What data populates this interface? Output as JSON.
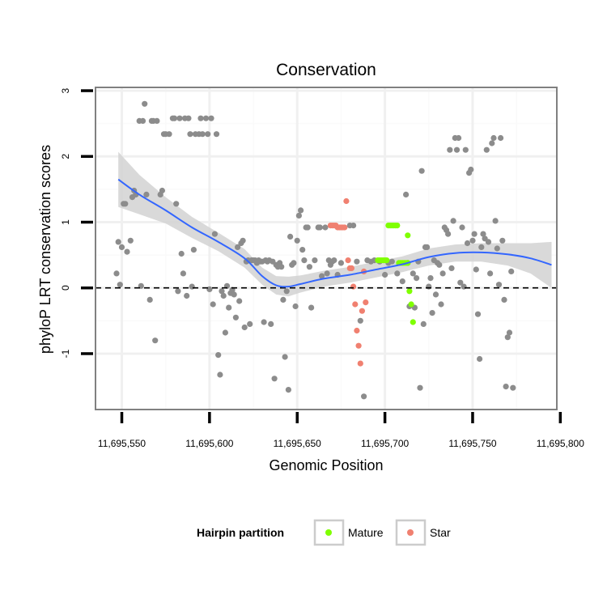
{
  "chart_data": {
    "type": "scatter",
    "title": "Conservation",
    "xlabel": "Genomic Position",
    "ylabel": "phyloP LRT conservation scores",
    "xlim": [
      11695535,
      11695798
    ],
    "ylim": [
      -1.85,
      3.05
    ],
    "x_ticks": [
      11695550,
      11695600,
      11695650,
      11695700,
      11695750,
      11695800
    ],
    "x_tick_labels": [
      "11,695,550",
      "11,695,600",
      "11,695,650",
      "11,695,700",
      "11,695,750",
      "11,695,800"
    ],
    "y_ticks": [
      -1,
      0,
      1,
      2,
      3
    ],
    "y_tick_labels": [
      "-1",
      "0",
      "1",
      "2",
      "3"
    ],
    "reference_line": {
      "y": 0,
      "style": "dashed"
    },
    "legend": {
      "title": "Hairpin partition",
      "position": "bottom",
      "entries": [
        {
          "label": "Mature",
          "color": "#7FFF00"
        },
        {
          "label": "Star",
          "color": "#F08070"
        }
      ]
    },
    "colors": {
      "other": "#8C8C8C",
      "mature": "#7FFF00",
      "star": "#F08070",
      "smooth": "#3366FF",
      "band": "#D2D2D2"
    },
    "series": [
      {
        "name": "Other",
        "points": [
          [
            11695547,
            0.22
          ],
          [
            11695548,
            0.7
          ],
          [
            11695549,
            0.05
          ],
          [
            11695550,
            0.62
          ],
          [
            11695551,
            1.28
          ],
          [
            11695552,
            1.28
          ],
          [
            11695553,
            0.55
          ],
          [
            11695555,
            0.72
          ],
          [
            11695556,
            1.38
          ],
          [
            11695557,
            1.48
          ],
          [
            11695558,
            1.42
          ],
          [
            11695560,
            2.54
          ],
          [
            11695561,
            0.03
          ],
          [
            11695562,
            2.54
          ],
          [
            11695563,
            2.8
          ],
          [
            11695564,
            1.42
          ],
          [
            11695566,
            -0.18
          ],
          [
            11695567,
            2.54
          ],
          [
            11695568,
            2.54
          ],
          [
            11695569,
            -0.8
          ],
          [
            11695570,
            2.54
          ],
          [
            11695572,
            1.42
          ],
          [
            11695573,
            1.48
          ],
          [
            11695574,
            2.34
          ],
          [
            11695575,
            2.34
          ],
          [
            11695577,
            2.34
          ],
          [
            11695579,
            2.58
          ],
          [
            11695580,
            2.58
          ],
          [
            11695581,
            1.28
          ],
          [
            11695582,
            -0.05
          ],
          [
            11695583,
            2.58
          ],
          [
            11695584,
            0.52
          ],
          [
            11695585,
            0.22
          ],
          [
            11695586,
            2.58
          ],
          [
            11695587,
            -0.12
          ],
          [
            11695588,
            2.58
          ],
          [
            11695589,
            2.34
          ],
          [
            11695590,
            0.02
          ],
          [
            11695591,
            0.58
          ],
          [
            11695592,
            2.34
          ],
          [
            11695594,
            2.34
          ],
          [
            11695595,
            2.58
          ],
          [
            11695596,
            2.34
          ],
          [
            11695598,
            2.58
          ],
          [
            11695599,
            2.34
          ],
          [
            11695600,
            -0.02
          ],
          [
            11695601,
            2.58
          ],
          [
            11695602,
            -0.25
          ],
          [
            11695603,
            0.82
          ],
          [
            11695604,
            2.34
          ],
          [
            11695605,
            -1.02
          ],
          [
            11695606,
            -1.32
          ],
          [
            11695607,
            -0.05
          ],
          [
            11695608,
            -0.12
          ],
          [
            11695609,
            -0.68
          ],
          [
            11695610,
            0.03
          ],
          [
            11695611,
            -0.3
          ],
          [
            11695612,
            -0.08
          ],
          [
            11695613,
            -0.03
          ],
          [
            11695614,
            -0.1
          ],
          [
            11695615,
            -0.45
          ],
          [
            11695616,
            0.62
          ],
          [
            11695617,
            -0.2
          ],
          [
            11695618,
            0.68
          ],
          [
            11695619,
            0.72
          ],
          [
            11695620,
            -0.6
          ],
          [
            11695621,
            0.4
          ],
          [
            11695622,
            0.42
          ],
          [
            11695623,
            -0.55
          ],
          [
            11695624,
            0.42
          ],
          [
            11695625,
            0.42
          ],
          [
            11695626,
            0.42
          ],
          [
            11695627,
            0.38
          ],
          [
            11695628,
            0.42
          ],
          [
            11695629,
            0.4
          ],
          [
            11695630,
            0.4
          ],
          [
            11695631,
            -0.52
          ],
          [
            11695632,
            0.42
          ],
          [
            11695633,
            0.4
          ],
          [
            11695634,
            0.42
          ],
          [
            11695635,
            -0.55
          ],
          [
            11695636,
            0.4
          ],
          [
            11695637,
            -1.38
          ],
          [
            11695638,
            0.35
          ],
          [
            11695639,
            0.32
          ],
          [
            11695640,
            0.38
          ],
          [
            11695641,
            0.32
          ],
          [
            11695642,
            -0.18
          ],
          [
            11695643,
            -1.05
          ],
          [
            11695644,
            -0.05
          ],
          [
            11695645,
            -1.55
          ],
          [
            11695646,
            0.78
          ],
          [
            11695647,
            0.35
          ],
          [
            11695648,
            0.38
          ],
          [
            11695649,
            -0.28
          ],
          [
            11695650,
            0.72
          ],
          [
            11695651,
            1.1
          ],
          [
            11695652,
            1.18
          ],
          [
            11695653,
            0.58
          ],
          [
            11695654,
            0.42
          ],
          [
            11695655,
            0.92
          ],
          [
            11695656,
            0.92
          ],
          [
            11695657,
            0.32
          ],
          [
            11695658,
            -0.3
          ],
          [
            11695660,
            0.42
          ],
          [
            11695662,
            0.92
          ],
          [
            11695663,
            0.92
          ],
          [
            11695664,
            0.18
          ],
          [
            11695666,
            0.92
          ],
          [
            11695667,
            0.22
          ],
          [
            11695668,
            0.42
          ],
          [
            11695669,
            0.35
          ],
          [
            11695670,
            0.4
          ],
          [
            11695671,
            0.42
          ],
          [
            11695673,
            0.2
          ],
          [
            11695675,
            0.38
          ],
          [
            11695680,
            0.95
          ],
          [
            11695682,
            0.95
          ],
          [
            11695684,
            0.4
          ],
          [
            11695686,
            -0.5
          ],
          [
            11695688,
            -1.65
          ],
          [
            11695690,
            0.42
          ],
          [
            11695692,
            0.4
          ],
          [
            11695694,
            0.42
          ],
          [
            11695697,
            0.4
          ],
          [
            11695700,
            0.2
          ],
          [
            11695702,
            0.38
          ],
          [
            11695704,
            0.4
          ],
          [
            11695707,
            0.22
          ],
          [
            11695710,
            0.1
          ],
          [
            11695712,
            1.42
          ],
          [
            11695713,
            0.38
          ],
          [
            11695714,
            -0.28
          ],
          [
            11695716,
            0.22
          ],
          [
            11695717,
            -0.3
          ],
          [
            11695718,
            0.15
          ],
          [
            11695719,
            0.4
          ],
          [
            11695720,
            -1.52
          ],
          [
            11695721,
            1.78
          ],
          [
            11695722,
            -0.55
          ],
          [
            11695723,
            0.62
          ],
          [
            11695724,
            0.62
          ],
          [
            11695725,
            0.02
          ],
          [
            11695726,
            0.15
          ],
          [
            11695727,
            -0.38
          ],
          [
            11695728,
            0.42
          ],
          [
            11695729,
            -0.1
          ],
          [
            11695730,
            0.38
          ],
          [
            11695731,
            0.35
          ],
          [
            11695732,
            -0.25
          ],
          [
            11695733,
            0.22
          ],
          [
            11695734,
            0.92
          ],
          [
            11695735,
            0.88
          ],
          [
            11695736,
            0.82
          ],
          [
            11695737,
            2.1
          ],
          [
            11695738,
            0.3
          ],
          [
            11695739,
            1.02
          ],
          [
            11695740,
            2.28
          ],
          [
            11695741,
            2.1
          ],
          [
            11695742,
            2.28
          ],
          [
            11695743,
            0.08
          ],
          [
            11695744,
            0.92
          ],
          [
            11695745,
            0.02
          ],
          [
            11695746,
            2.1
          ],
          [
            11695747,
            0.68
          ],
          [
            11695748,
            1.75
          ],
          [
            11695749,
            1.8
          ],
          [
            11695750,
            0.72
          ],
          [
            11695751,
            0.82
          ],
          [
            11695752,
            0.28
          ],
          [
            11695753,
            -0.4
          ],
          [
            11695754,
            -1.08
          ],
          [
            11695755,
            0.62
          ],
          [
            11695756,
            0.82
          ],
          [
            11695757,
            0.75
          ],
          [
            11695758,
            2.1
          ],
          [
            11695759,
            0.7
          ],
          [
            11695760,
            0.22
          ],
          [
            11695761,
            2.2
          ],
          [
            11695762,
            2.28
          ],
          [
            11695763,
            1.02
          ],
          [
            11695764,
            0.6
          ],
          [
            11695765,
            0.05
          ],
          [
            11695766,
            2.28
          ],
          [
            11695767,
            0.72
          ],
          [
            11695768,
            -0.18
          ],
          [
            11695769,
            -1.5
          ],
          [
            11695770,
            -0.75
          ],
          [
            11695771,
            -0.68
          ],
          [
            11695772,
            0.25
          ],
          [
            11695773,
            -1.52
          ]
        ]
      },
      {
        "name": "Mature",
        "points": [
          [
            11695696,
            0.42
          ],
          [
            11695697,
            0.42
          ],
          [
            11695698,
            0.42
          ],
          [
            11695699,
            0.42
          ],
          [
            11695700,
            0.42
          ],
          [
            11695701,
            0.42
          ],
          [
            11695702,
            0.95
          ],
          [
            11695703,
            0.95
          ],
          [
            11695704,
            0.95
          ],
          [
            11695705,
            0.95
          ],
          [
            11695706,
            0.95
          ],
          [
            11695707,
            0.95
          ],
          [
            11695708,
            0.38
          ],
          [
            11695709,
            0.38
          ],
          [
            11695710,
            0.38
          ],
          [
            11695711,
            0.38
          ],
          [
            11695712,
            0.38
          ],
          [
            11695713,
            0.38
          ],
          [
            11695713,
            0.8
          ],
          [
            11695714,
            -0.05
          ],
          [
            11695715,
            -0.25
          ],
          [
            11695716,
            -0.52
          ]
        ]
      },
      {
        "name": "Star",
        "points": [
          [
            11695669,
            0.95
          ],
          [
            11695670,
            0.95
          ],
          [
            11695671,
            0.95
          ],
          [
            11695672,
            0.95
          ],
          [
            11695673,
            0.92
          ],
          [
            11695674,
            0.92
          ],
          [
            11695675,
            0.92
          ],
          [
            11695676,
            0.92
          ],
          [
            11695677,
            0.92
          ],
          [
            11695678,
            1.32
          ],
          [
            11695679,
            0.42
          ],
          [
            11695680,
            0.3
          ],
          [
            11695681,
            0.3
          ],
          [
            11695682,
            0.02
          ],
          [
            11695683,
            -0.25
          ],
          [
            11695684,
            -0.65
          ],
          [
            11695685,
            -0.88
          ],
          [
            11695686,
            -1.15
          ],
          [
            11695687,
            -0.35
          ],
          [
            11695688,
            0.25
          ],
          [
            11695689,
            -0.22
          ]
        ]
      }
    ],
    "smooth": {
      "x": [
        11695548,
        11695560,
        11695575,
        11695590,
        11695605,
        11695620,
        11695630,
        11695638,
        11695645,
        11695652,
        11695665,
        11695680,
        11695695,
        11695710,
        11695725,
        11695740,
        11695755,
        11695770,
        11695783,
        11695795
      ],
      "y": [
        1.65,
        1.42,
        1.18,
        0.92,
        0.7,
        0.45,
        0.18,
        0.04,
        0.02,
        0.06,
        0.14,
        0.2,
        0.28,
        0.36,
        0.47,
        0.53,
        0.54,
        0.51,
        0.45,
        0.35
      ],
      "band_halfwidth": [
        0.42,
        0.3,
        0.2,
        0.16,
        0.14,
        0.14,
        0.13,
        0.14,
        0.15,
        0.13,
        0.12,
        0.12,
        0.12,
        0.12,
        0.13,
        0.13,
        0.14,
        0.17,
        0.23,
        0.35
      ]
    }
  }
}
